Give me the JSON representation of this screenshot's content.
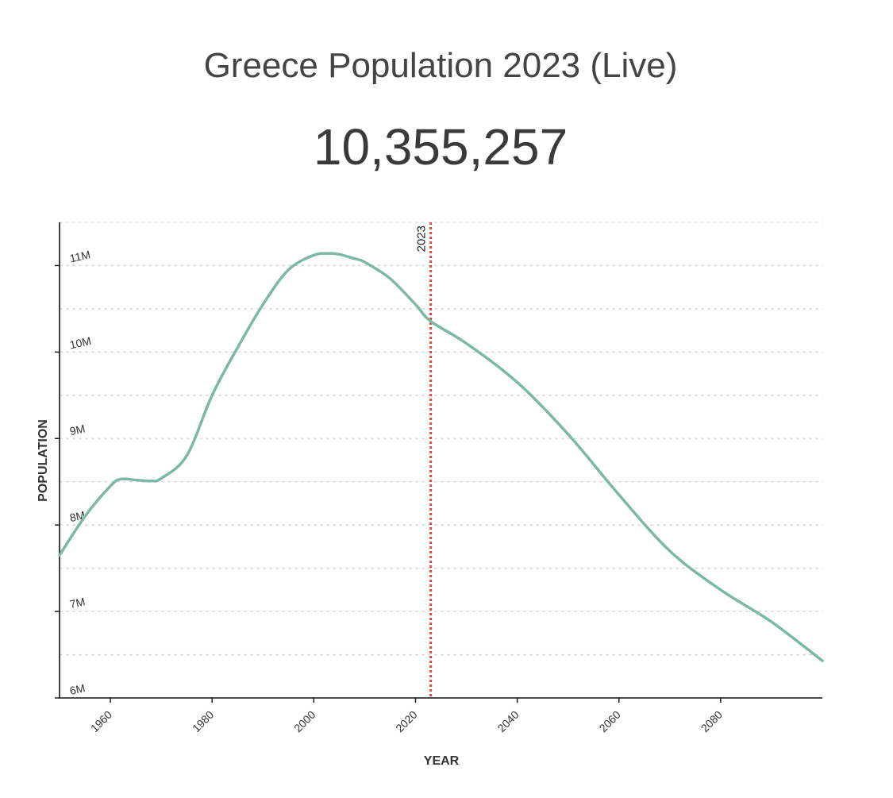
{
  "header": {
    "title": "Greece Population 2023 (Live)",
    "live_count": "10,355,257"
  },
  "colors": {
    "line": "#7cb8a8",
    "marker": "#e0443c",
    "grid": "#d6d6d6",
    "axis": "#111111",
    "text": "#444444"
  },
  "chart_data": {
    "type": "line",
    "xlabel": "YEAR",
    "ylabel": "POPULATION",
    "xlim": [
      1950,
      2100
    ],
    "ylim": [
      6000000,
      11500000
    ],
    "x_ticks": [
      1960,
      1980,
      2000,
      2020,
      2040,
      2060,
      2080
    ],
    "x_tick_labels": [
      "1960",
      "1980",
      "2000",
      "2020",
      "2040",
      "2060",
      "2080"
    ],
    "y_ticks": [
      6000000,
      7000000,
      8000000,
      9000000,
      10000000,
      11000000
    ],
    "y_tick_labels": [
      "6M",
      "7M",
      "8M",
      "9M",
      "10M",
      "11M"
    ],
    "grid": "horizontal dashed",
    "marker": {
      "x": 2023,
      "label": "2023"
    },
    "series": [
      {
        "x": [
          1950,
          1955,
          1960,
          1962,
          1965,
          1968,
          1970,
          1975,
          1980,
          1985,
          1990,
          1995,
          2000,
          2003,
          2005,
          2008,
          2010,
          2015,
          2020,
          2023,
          2030,
          2040,
          2050,
          2060,
          2070,
          2080,
          2090,
          2100
        ],
        "values": [
          7650000,
          8100000,
          8450000,
          8530000,
          8520000,
          8510000,
          8540000,
          8800000,
          9500000,
          10050000,
          10550000,
          10950000,
          11120000,
          11140000,
          11130000,
          11080000,
          11040000,
          10850000,
          10550000,
          10355257,
          10100000,
          9650000,
          9050000,
          8350000,
          7700000,
          7250000,
          6880000,
          6430000
        ]
      }
    ]
  }
}
